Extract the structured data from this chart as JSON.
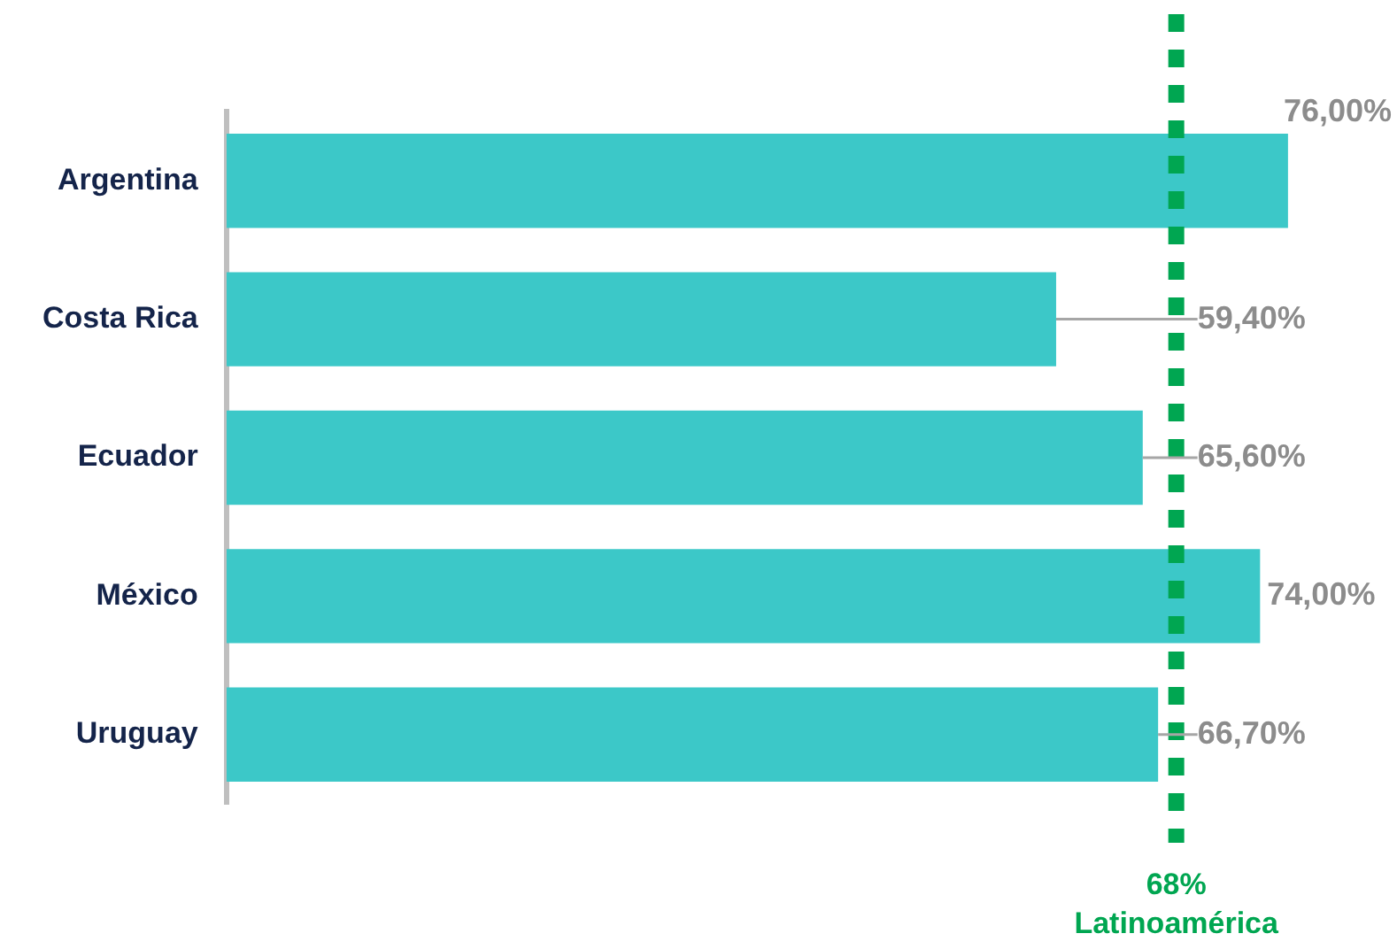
{
  "chart_data": {
    "type": "bar",
    "orientation": "horizontal",
    "categories": [
      "Argentina",
      "Costa Rica",
      "Ecuador",
      "México",
      "Uruguay"
    ],
    "values": [
      76,
      59.4,
      65.6,
      74,
      66.7
    ],
    "color": "#3cc8c8",
    "value_labels": [
      "76,00%",
      "59,40%",
      "65,60%",
      "74,00%",
      "66,70%"
    ],
    "tick_labels": "y",
    "legend": false,
    "ref_lines": [
      {
        "axis": "x",
        "value": 68,
        "label": "68%\nLatinoamérica",
        "color": "#00a651",
        "line_style": "dashed"
      }
    ]
  }
}
